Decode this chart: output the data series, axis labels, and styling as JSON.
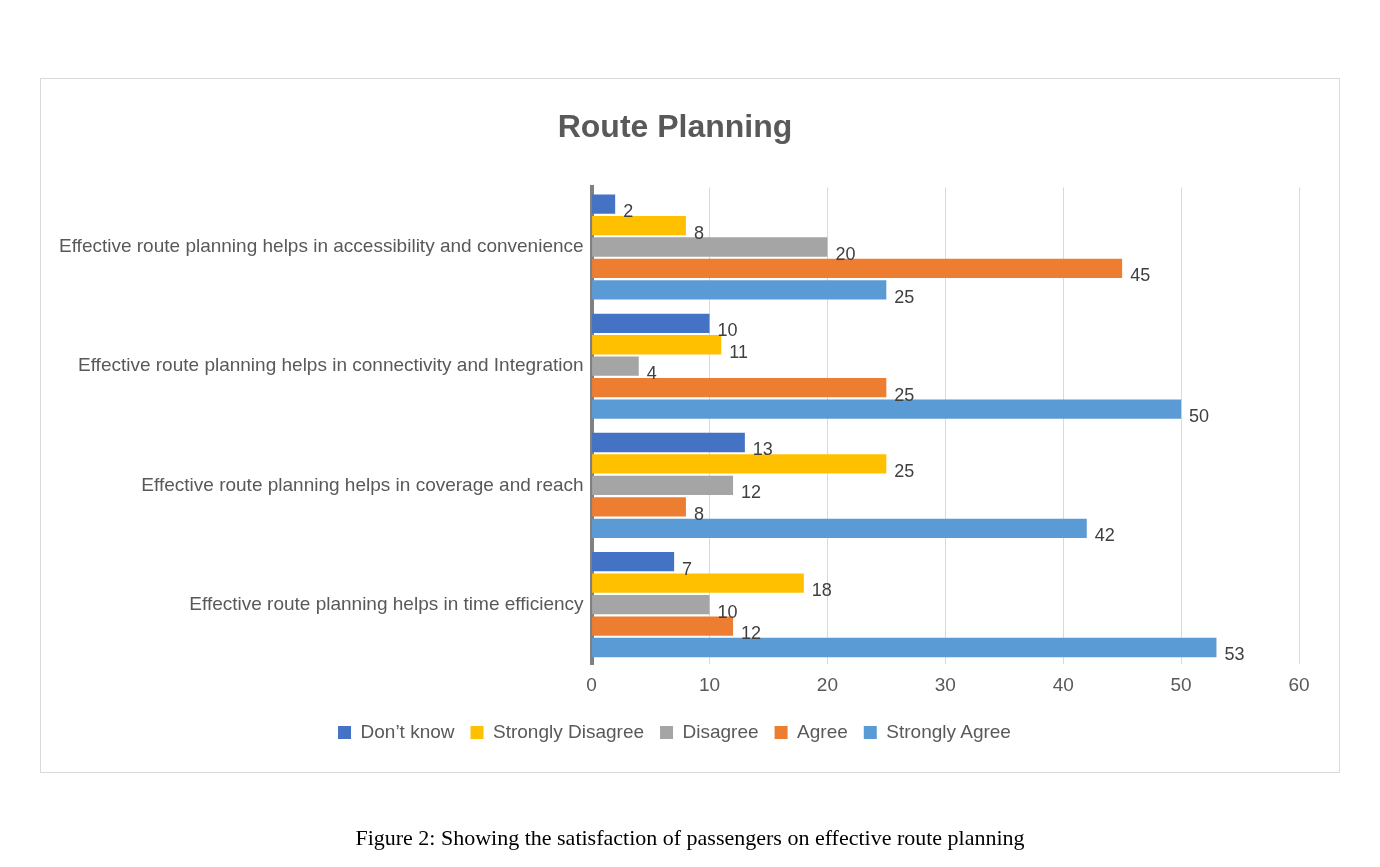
{
  "chart_data": {
    "type": "bar",
    "orientation": "horizontal",
    "title": "Route Planning",
    "categories": [
      "Effective route planning helps in accessibility and convenience",
      "Effective route planning helps in connectivity and Integration",
      "Effective route planning helps in coverage and reach",
      "Effective route planning helps in time efficiency"
    ],
    "series": [
      {
        "name": "Don’t know",
        "color": "#4472c4",
        "values": [
          2,
          10,
          13,
          7
        ]
      },
      {
        "name": "Strongly Disagree",
        "color": "#ffc000",
        "values": [
          8,
          11,
          25,
          18
        ]
      },
      {
        "name": "Disagree",
        "color": "#a5a5a5",
        "values": [
          20,
          4,
          12,
          10
        ]
      },
      {
        "name": "Agree",
        "color": "#ed7d31",
        "values": [
          45,
          25,
          8,
          12
        ]
      },
      {
        "name": "Strongly Agree",
        "color": "#5b9bd5",
        "values": [
          25,
          50,
          42,
          53
        ]
      }
    ],
    "xlim": [
      0,
      60
    ],
    "xticks": [
      0,
      10,
      20,
      30,
      40,
      50,
      60
    ],
    "grid": "x",
    "legend": "bottom",
    "data_labels": true,
    "annotations": [
      "Figure 2: Showing the satisfaction of passengers on effective route planning"
    ]
  }
}
